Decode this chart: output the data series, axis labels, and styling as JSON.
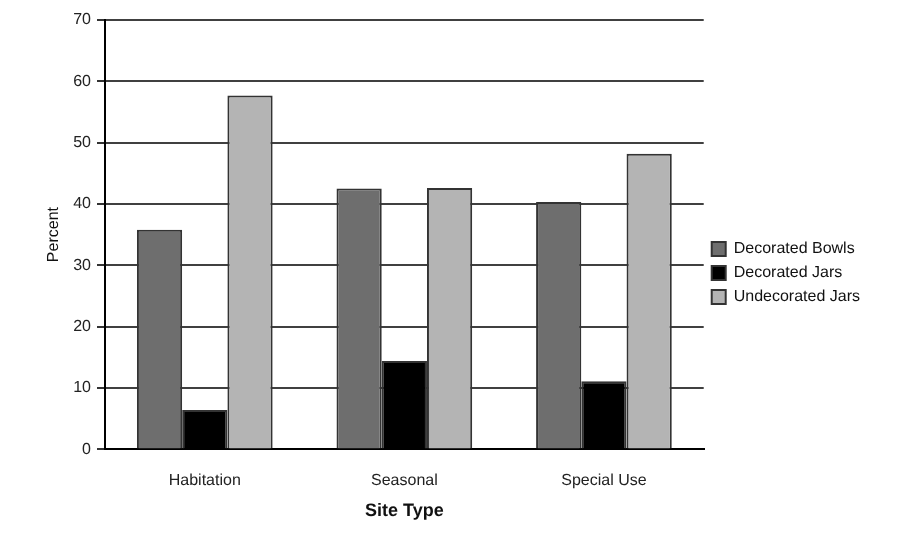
{
  "chart_data": {
    "type": "bar",
    "xlabel": "Site Type",
    "ylabel": "Percent",
    "categories": [
      "Habitation",
      "Seasonal",
      "Special Use"
    ],
    "series": [
      {
        "name": "Decorated Bowls",
        "color": "#6e6e6e",
        "values": [
          35.8,
          42.5,
          40.3
        ]
      },
      {
        "name": "Decorated Jars",
        "color": "#000000",
        "values": [
          6.4,
          14.4,
          11.1
        ]
      },
      {
        "name": "Undecorated Jars",
        "color": "#b4b4b4",
        "values": [
          57.7,
          42.6,
          48.2
        ]
      }
    ],
    "ylim": [
      0,
      70
    ],
    "yticks": [
      0,
      10,
      20,
      30,
      40,
      50,
      60,
      70
    ],
    "grid": "y",
    "legend": "right"
  }
}
